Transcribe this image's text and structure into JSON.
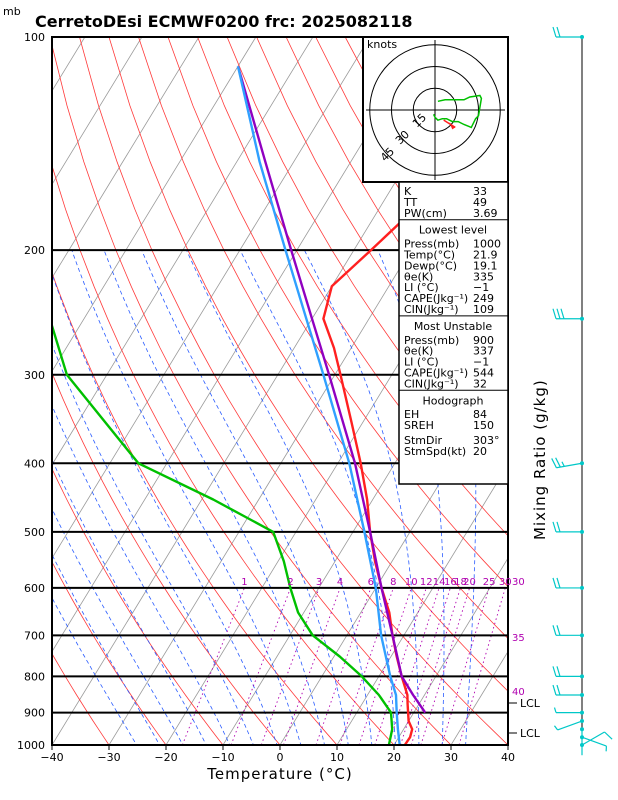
{
  "unit_top": "mb",
  "chart_data": {
    "type": "line",
    "title": "CerretoDEsi ECMWF0200  frc: 2025082118",
    "xlabel": "Temperature (°C)",
    "ylabel": "Mixing Ratio (g/kg)",
    "xlim": [
      -40,
      40
    ],
    "ylim_pressure": [
      1000,
      100
    ],
    "y_scale": "log",
    "x_ticks": [
      "−40",
      "−30",
      "−20",
      "−10",
      "0",
      "10",
      "20",
      "30",
      "40"
    ],
    "p_ticks": [
      "100",
      "200",
      "300",
      "400",
      "500",
      "600",
      "700",
      "800",
      "900",
      "1000"
    ],
    "mixing_ratio_labels": [
      "1",
      "2",
      "3",
      "4",
      "6",
      "8",
      "10",
      "12",
      "14",
      "16",
      "18",
      "20",
      "25",
      "30"
    ],
    "mixing_ratio_values": [
      1,
      2,
      3,
      4,
      6,
      8,
      10,
      12,
      14,
      16,
      18,
      20,
      25,
      30
    ],
    "theta_e_labels": [
      "30",
      "35",
      "40"
    ],
    "lcl_labels": [
      "LCL",
      "LCL"
    ],
    "series": [
      {
        "color": "#ff2020",
        "points": [
          [
            1000,
            21.9
          ],
          [
            975,
            22
          ],
          [
            950,
            21.5
          ],
          [
            925,
            20
          ],
          [
            900,
            19
          ],
          [
            875,
            18
          ],
          [
            850,
            17
          ],
          [
            800,
            14
          ],
          [
            750,
            11
          ],
          [
            700,
            8
          ],
          [
            650,
            5
          ],
          [
            600,
            1
          ],
          [
            550,
            -3
          ],
          [
            500,
            -7
          ],
          [
            450,
            -11
          ],
          [
            400,
            -16
          ],
          [
            350,
            -22
          ],
          [
            300,
            -29
          ],
          [
            275,
            -33
          ],
          [
            250,
            -38
          ],
          [
            225,
            -40
          ],
          [
            200,
            -37
          ],
          [
            150,
            -30
          ],
          [
            100,
            -21
          ]
        ]
      },
      {
        "color": "#00c000",
        "points": [
          [
            1000,
            19.1
          ],
          [
            950,
            18
          ],
          [
            900,
            16
          ],
          [
            850,
            12
          ],
          [
            800,
            7
          ],
          [
            750,
            1
          ],
          [
            700,
            -6
          ],
          [
            650,
            -11
          ],
          [
            600,
            -15
          ],
          [
            550,
            -19
          ],
          [
            500,
            -24
          ],
          [
            450,
            -38
          ],
          [
            400,
            -55
          ],
          [
            300,
            -77
          ],
          [
            250,
            -86
          ],
          [
            200,
            -104
          ],
          [
            150,
            -129
          ],
          [
            100,
            -153
          ]
        ]
      },
      {
        "color": "#9000c0",
        "points": [
          [
            900,
            22
          ],
          [
            850,
            18
          ],
          [
            800,
            14
          ],
          [
            700,
            8
          ],
          [
            600,
            1
          ],
          [
            500,
            -7
          ],
          [
            400,
            -17
          ],
          [
            300,
            -31
          ],
          [
            250,
            -40
          ],
          [
            200,
            -51
          ],
          [
            150,
            -65
          ],
          [
            110,
            -80
          ]
        ]
      },
      {
        "color": "#30a0ff",
        "points": [
          [
            1000,
            21
          ],
          [
            950,
            19
          ],
          [
            900,
            17
          ],
          [
            850,
            15
          ],
          [
            800,
            12
          ],
          [
            700,
            6
          ],
          [
            600,
            0
          ],
          [
            500,
            -8
          ],
          [
            400,
            -18
          ],
          [
            300,
            -32
          ],
          [
            250,
            -41
          ],
          [
            200,
            -52
          ],
          [
            150,
            -66
          ],
          [
            110,
            -80
          ]
        ]
      }
    ],
    "wind_barbs": [
      {
        "p": 1000,
        "dir": 60,
        "spd": 10
      },
      {
        "p": 975,
        "dir": 110,
        "spd": 5
      },
      {
        "p": 950,
        "dir": 180,
        "spd": 3
      },
      {
        "p": 925,
        "dir": 250,
        "spd": 5
      },
      {
        "p": 900,
        "dir": 270,
        "spd": 8
      },
      {
        "p": 850,
        "dir": 270,
        "spd": 20
      },
      {
        "p": 800,
        "dir": 270,
        "spd": 20
      },
      {
        "p": 700,
        "dir": 270,
        "spd": 20
      },
      {
        "p": 600,
        "dir": 270,
        "spd": 20
      },
      {
        "p": 500,
        "dir": 270,
        "spd": 20
      },
      {
        "p": 400,
        "dir": 260,
        "spd": 25
      },
      {
        "p": 250,
        "dir": 270,
        "spd": 30
      },
      {
        "p": 100,
        "dir": 270,
        "spd": 20
      }
    ],
    "hodograph": {
      "label": "knots",
      "rings": [
        "15",
        "30",
        "45"
      ],
      "trace": [
        [
          -1,
          -3
        ],
        [
          0,
          -5
        ],
        [
          2,
          -7
        ],
        [
          5,
          -6
        ],
        [
          8,
          -6
        ],
        [
          12,
          -8
        ],
        [
          16,
          -8
        ],
        [
          20,
          -10
        ],
        [
          25,
          -12
        ],
        [
          28,
          -6
        ],
        [
          30,
          -4
        ],
        [
          32,
          8
        ],
        [
          31,
          10
        ],
        [
          24,
          9
        ],
        [
          20,
          7
        ],
        [
          14,
          7
        ],
        [
          7,
          7
        ],
        [
          2,
          6
        ]
      ],
      "storm_motion": [
        6,
        -7,
        14,
        -12
      ]
    }
  },
  "panel": {
    "rows1": [
      {
        "k": "K",
        "v": "33"
      },
      {
        "k": "TT",
        "v": "49"
      },
      {
        "k": "PW(cm)",
        "v": "3.69"
      }
    ],
    "lowest_header": "Lowest level",
    "lowest": [
      {
        "k": "Press(mb)",
        "v": "1000"
      },
      {
        "k": "Temp(°C)",
        "v": "21.9"
      },
      {
        "k": "Dewp(°C)",
        "v": "19.1"
      },
      {
        "k": "θe(K)",
        "v": "335"
      },
      {
        "k": "LI (°C)",
        "v": "−1"
      },
      {
        "k": "CAPE(Jkg⁻¹)",
        "v": "249"
      },
      {
        "k": "CIN(Jkg⁻¹)",
        "v": "109"
      }
    ],
    "mu_header": "Most Unstable",
    "mu": [
      {
        "k": "Press(mb)",
        "v": "900"
      },
      {
        "k": "θe(K)",
        "v": "337"
      },
      {
        "k": "LI (°C)",
        "v": "−1"
      },
      {
        "k": "CAPE(Jkg⁻¹)",
        "v": "544"
      },
      {
        "k": "CIN(Jkg⁻¹)",
        "v": "32"
      }
    ],
    "hodo_header": "Hodograph",
    "hodo": [
      {
        "k": "EH",
        "v": "84"
      },
      {
        "k": "SREH",
        "v": "150"
      }
    ],
    "storm": [
      {
        "k": "StmDir",
        "v": "303°"
      },
      {
        "k": "StmSpd(kt)",
        "v": "20"
      }
    ]
  }
}
